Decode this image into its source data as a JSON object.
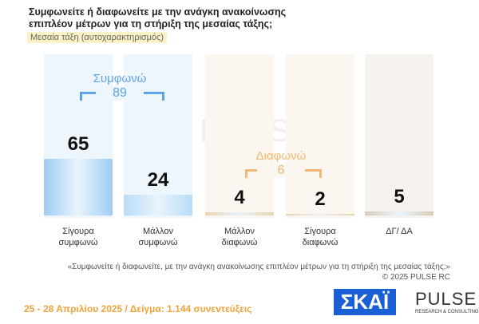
{
  "chart_data": {
    "type": "bar",
    "title": "Συμφωνείτε ή διαφωνείτε με την ανάγκη ανακοίνωσης επιπλέον μέτρων για τη στήριξη της μεσαίας τάξης;",
    "subtitle": "Μεσαία τάξη (αυτοχαρακτηρισμός)",
    "categories": [
      "Σίγουρα συμφωνώ",
      "Μάλλον συμφωνώ",
      "Μάλλον διαφωνώ",
      "Σίγουρα διαφωνώ",
      "ΔΓ/ ΔΑ"
    ],
    "values": [
      65,
      24,
      4,
      2,
      5
    ],
    "colors": [
      "#9fcdf3",
      "#b9dcf7",
      "#e6d3ac",
      "#e6d3ac",
      "#d9cbb5"
    ],
    "annotations": [
      {
        "text": "Συμφωνώ",
        "value": 89
      },
      {
        "text": "Διαφωνώ",
        "value": 6
      }
    ],
    "footnote": "«Συμφωνείτε ή διαφωνείτε, με την ανάγκη ανακοίνωσης επιπλέον μέτρων για τη στήριξη της μεσαίας τάξης;»",
    "copyright": "© 2025  PULSE RC",
    "fieldwork": "25 - 28 Απριλίου 2025  /  Δείγμα:  1.144 συνεντεύξεις",
    "logos": {
      "skai": "ΣΚΑΪ",
      "pulse": "PULSE",
      "pulse_sub": "RESEARCH & CONSULTING"
    }
  }
}
